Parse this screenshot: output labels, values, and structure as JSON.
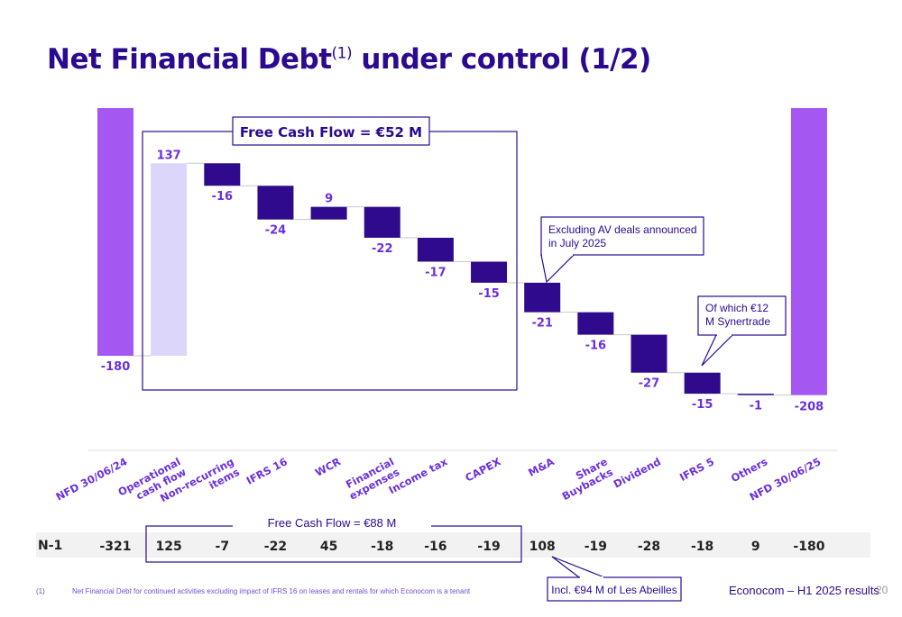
{
  "title": {
    "main": "Net Financial Debt",
    "sup": "(1)",
    "rest": " under control (1/2)"
  },
  "colors": {
    "dark": "#2b0a8f",
    "bar": "#2f0a8c",
    "endpoint": "#a557f2",
    "light": "#dcd7fa",
    "label": "#6b2fe0"
  },
  "fcf_box_label": "Free Cash Flow = €52 M",
  "callouts": {
    "ma": "Excluding AV deals announced in July 2025",
    "ifrs5": "Of which €12 M Synertrade",
    "abeilles": "Incl. €94 M of Les Abeilles"
  },
  "n1": {
    "label": "N-1",
    "fcf_label": "Free Cash Flow = €88 M",
    "values": [
      "-321",
      "125",
      "-7",
      "-22",
      "45",
      "-18",
      "-16",
      "-19",
      "108",
      "-19",
      "-28",
      "-18",
      "9",
      "-180"
    ]
  },
  "chart_data": {
    "type": "bar",
    "subtype": "waterfall",
    "categories": [
      "NFD 30/06/24",
      "Operational cash flow",
      "Non-recurring items",
      "IFRS 16",
      "WCR",
      "Financial expenses",
      "Income tax",
      "CAPEX",
      "M&A",
      "Share Buybacks",
      "Dividend",
      "IFRS 5",
      "Others",
      "NFD 30/06/25"
    ],
    "values": [
      -180,
      137,
      -16,
      -24,
      9,
      -22,
      -17,
      -15,
      -21,
      -16,
      -27,
      -15,
      -1,
      -208
    ],
    "labels": [
      "-180",
      "137",
      "-16",
      "-24",
      "9",
      "-22",
      "-17",
      "-15",
      "-21",
      "-16",
      "-27",
      "-15",
      "-1",
      "-208"
    ],
    "measure": [
      "total",
      "relative",
      "relative",
      "relative",
      "relative",
      "relative",
      "relative",
      "relative",
      "relative",
      "relative",
      "relative",
      "relative",
      "relative",
      "total"
    ]
  },
  "footnote": {
    "num": "(1)",
    "text": "Net Financial Debt for continued activities excluding impact of IFRS 16 on leases and rentals for which Econocom is a tenant"
  },
  "footer": {
    "text": "Econocom – H1 2025 results",
    "page": "20"
  }
}
